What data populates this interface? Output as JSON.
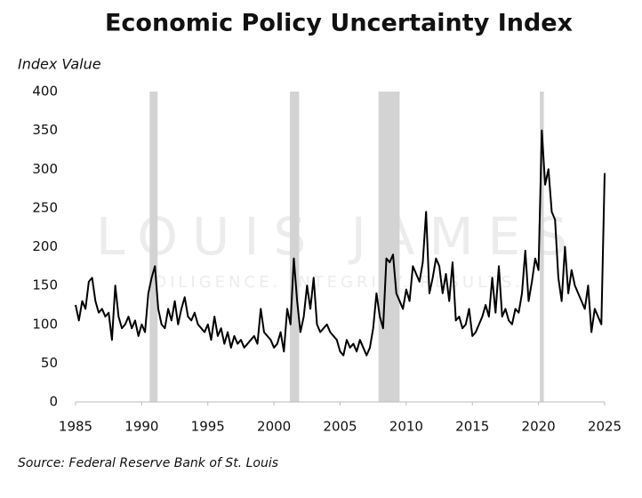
{
  "chart_data": {
    "type": "line",
    "title": "Economic Policy Uncertainty Index",
    "y_label": "Index Value",
    "source": "Source: Federal Reserve Bank of St. Louis",
    "watermark": "LOUIS JAMES",
    "watermark_tagline": "DILIGENCE. INTEGRITY. RESULTS.",
    "xlim": [
      1985,
      2025
    ],
    "xticks": [
      1985,
      1990,
      1995,
      2000,
      2005,
      2010,
      2015,
      2020,
      2025
    ],
    "ylim": [
      0,
      400
    ],
    "yticks": [
      0,
      50,
      100,
      150,
      200,
      250,
      300,
      350,
      400
    ],
    "grid": false,
    "recessions": [
      [
        1990.6,
        1991.2
      ],
      [
        2001.2,
        2001.9
      ],
      [
        2007.9,
        2009.5
      ],
      [
        2020.1,
        2020.4
      ]
    ],
    "recession_color": "#d3d3d3",
    "series": [
      {
        "name": "Index Value",
        "color": "#000000",
        "x": [
          1985,
          1985.25,
          1985.5,
          1985.75,
          1986,
          1986.25,
          1986.5,
          1986.75,
          1987,
          1987.25,
          1987.5,
          1987.75,
          1988,
          1988.25,
          1988.5,
          1988.75,
          1989,
          1989.25,
          1989.5,
          1989.75,
          1990,
          1990.25,
          1990.5,
          1990.75,
          1991,
          1991.25,
          1991.5,
          1991.75,
          1992,
          1992.25,
          1992.5,
          1992.75,
          1993,
          1993.25,
          1993.5,
          1993.75,
          1994,
          1994.25,
          1994.5,
          1994.75,
          1995,
          1995.25,
          1995.5,
          1995.75,
          1996,
          1996.25,
          1996.5,
          1996.75,
          1997,
          1997.25,
          1997.5,
          1997.75,
          1998,
          1998.25,
          1998.5,
          1998.75,
          1999,
          1999.25,
          1999.5,
          1999.75,
          2000,
          2000.25,
          2000.5,
          2000.75,
          2001,
          2001.25,
          2001.5,
          2001.75,
          2002,
          2002.25,
          2002.5,
          2002.75,
          2003,
          2003.25,
          2003.5,
          2003.75,
          2004,
          2004.25,
          2004.5,
          2004.75,
          2005,
          2005.25,
          2005.5,
          2005.75,
          2006,
          2006.25,
          2006.5,
          2006.75,
          2007,
          2007.25,
          2007.5,
          2007.75,
          2008,
          2008.25,
          2008.5,
          2008.75,
          2009,
          2009.25,
          2009.5,
          2009.75,
          2010,
          2010.25,
          2010.5,
          2010.75,
          2011,
          2011.25,
          2011.5,
          2011.75,
          2012,
          2012.25,
          2012.5,
          2012.75,
          2013,
          2013.25,
          2013.5,
          2013.75,
          2014,
          2014.25,
          2014.5,
          2014.75,
          2015,
          2015.25,
          2015.5,
          2015.75,
          2016,
          2016.25,
          2016.5,
          2016.75,
          2017,
          2017.25,
          2017.5,
          2017.75,
          2018,
          2018.25,
          2018.5,
          2018.75,
          2019,
          2019.25,
          2019.5,
          2019.75,
          2020,
          2020.25,
          2020.5,
          2020.75,
          2021,
          2021.25,
          2021.5,
          2021.75,
          2022,
          2022.25,
          2022.5,
          2022.75,
          2023,
          2023.25,
          2023.5,
          2023.75,
          2024,
          2024.25,
          2024.5,
          2024.75,
          2025
        ],
        "values": [
          125,
          105,
          130,
          120,
          155,
          160,
          130,
          115,
          120,
          110,
          115,
          80,
          150,
          110,
          95,
          100,
          110,
          95,
          105,
          85,
          100,
          90,
          140,
          160,
          175,
          120,
          100,
          95,
          120,
          105,
          130,
          100,
          120,
          135,
          110,
          105,
          115,
          100,
          95,
          90,
          100,
          80,
          110,
          85,
          95,
          75,
          90,
          70,
          85,
          75,
          80,
          70,
          75,
          80,
          85,
          75,
          120,
          90,
          85,
          80,
          70,
          75,
          90,
          65,
          120,
          100,
          185,
          130,
          90,
          110,
          150,
          120,
          160,
          100,
          90,
          95,
          100,
          90,
          85,
          80,
          65,
          60,
          80,
          70,
          75,
          65,
          80,
          70,
          60,
          70,
          95,
          140,
          110,
          95,
          185,
          180,
          190,
          140,
          130,
          120,
          145,
          130,
          175,
          165,
          155,
          180,
          245,
          140,
          160,
          185,
          175,
          140,
          165,
          130,
          180,
          105,
          110,
          95,
          100,
          120,
          85,
          90,
          100,
          110,
          125,
          110,
          160,
          115,
          175,
          110,
          120,
          105,
          100,
          120,
          115,
          140,
          195,
          130,
          155,
          185,
          170,
          350,
          280,
          300,
          245,
          235,
          160,
          130,
          200,
          140,
          170,
          150,
          140,
          130,
          120,
          150,
          90,
          120,
          110,
          100,
          295
        ]
      }
    ]
  }
}
